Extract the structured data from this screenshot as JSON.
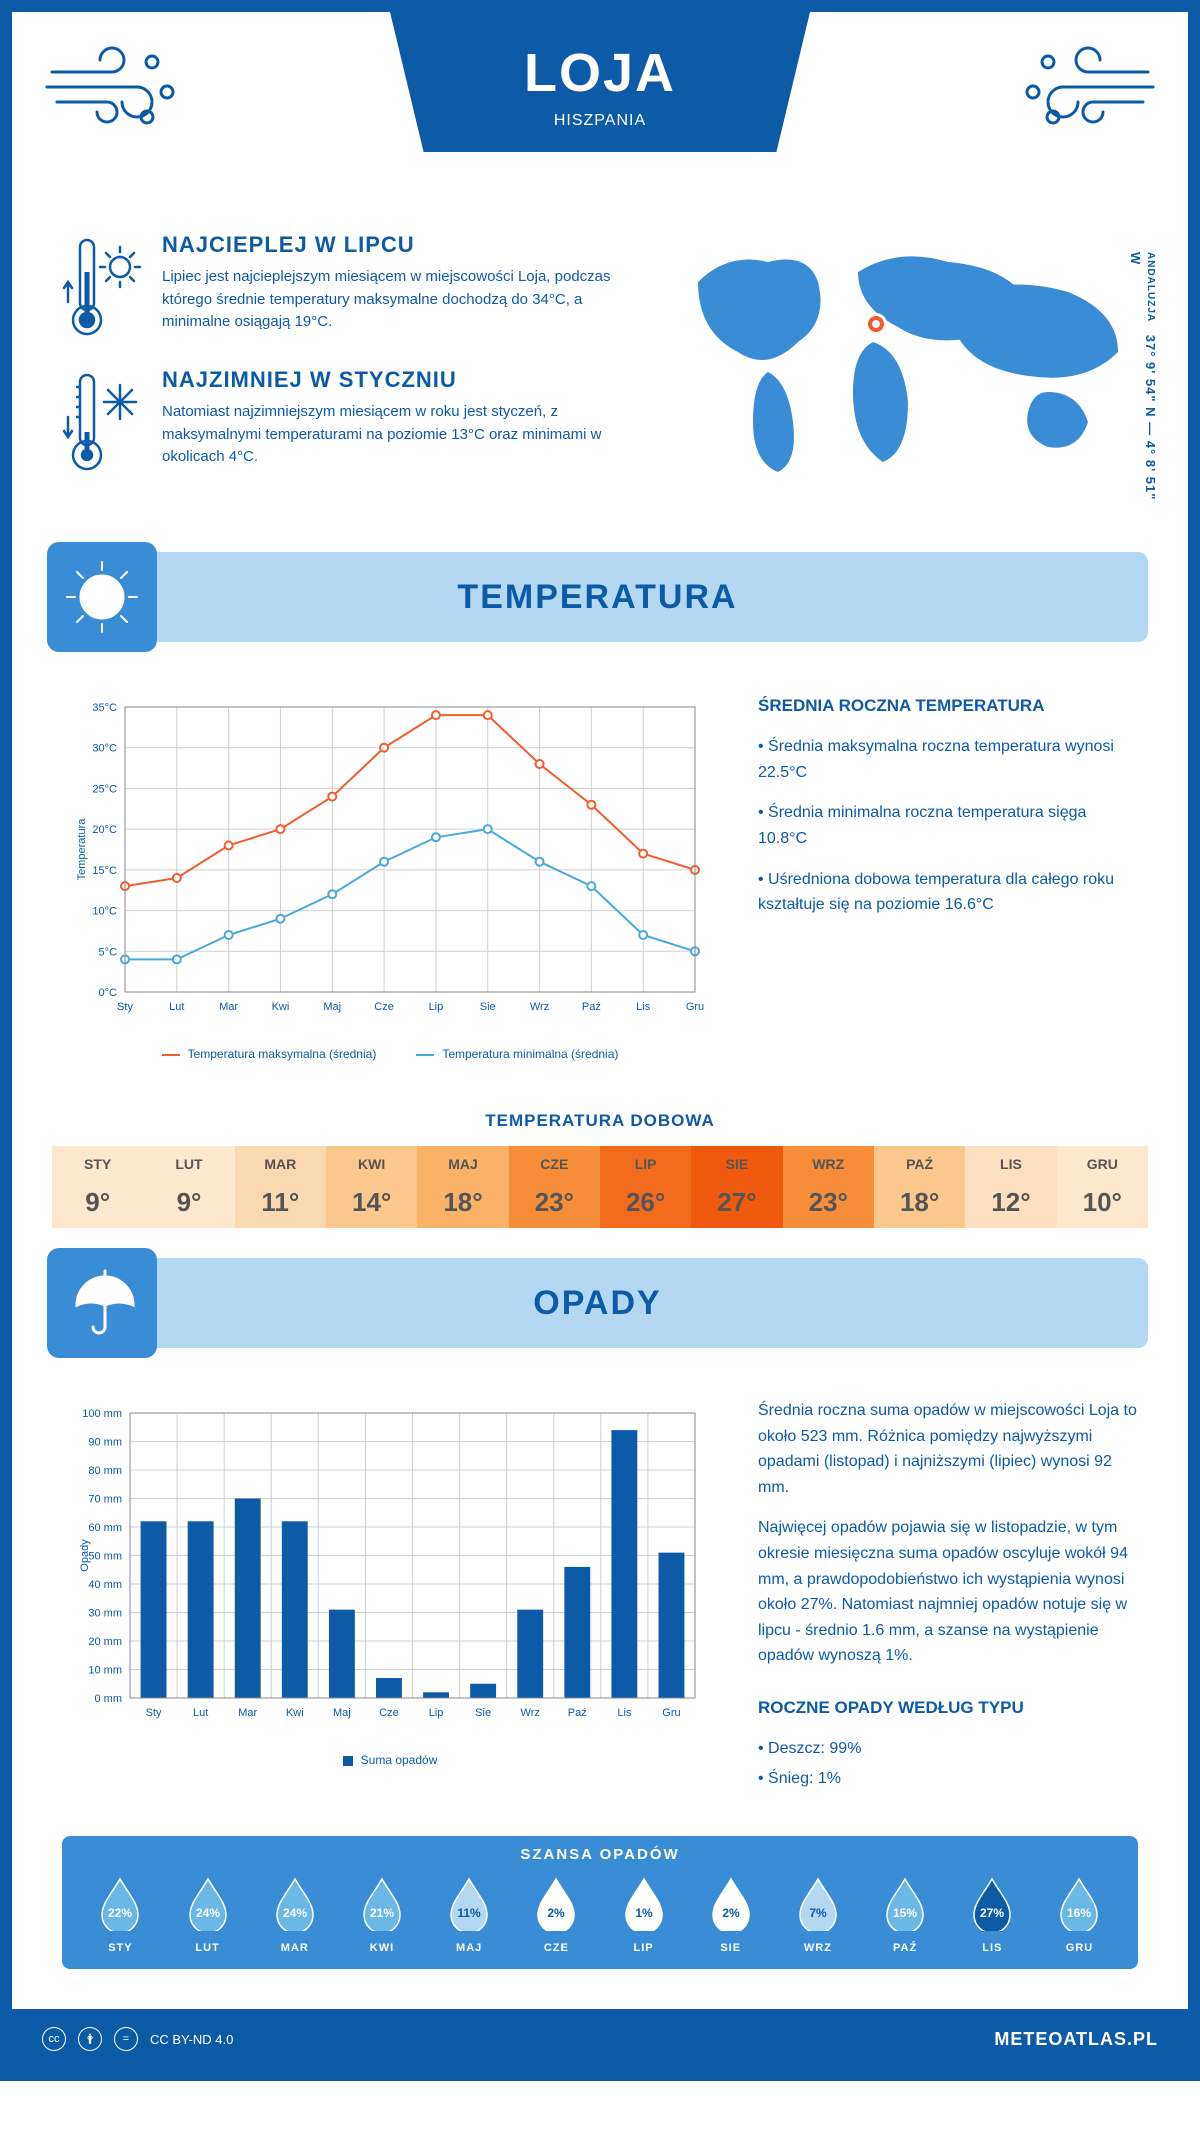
{
  "header": {
    "city": "LOJA",
    "country": "HISZPANIA"
  },
  "coords": {
    "region": "ANDALUZJA",
    "lat": "37° 9' 54\" N",
    "lon": "4° 8' 51\" W"
  },
  "facts": {
    "hot": {
      "title": "NAJCIEPLEJ W LIPCU",
      "body": "Lipiec jest najcieplejszym miesiącem w miejscowości Loja, podczas którego średnie temperatury maksymalne dochodzą do 34°C, a minimalne osiągają 19°C."
    },
    "cold": {
      "title": "NAJZIMNIEJ W STYCZNIU",
      "body": "Natomiast najzimniejszym miesiącem w roku jest styczeń, z maksymalnymi temperaturami na poziomie 13°C oraz minimami w okolicach 4°C."
    }
  },
  "sections": {
    "temp": "TEMPERATURA",
    "rain": "OPADY"
  },
  "temp_chart": {
    "months": [
      "Sty",
      "Lut",
      "Mar",
      "Kwi",
      "Maj",
      "Cze",
      "Lip",
      "Sie",
      "Wrz",
      "Paź",
      "Lis",
      "Gru"
    ],
    "max": [
      13,
      14,
      18,
      20,
      24,
      30,
      34,
      34,
      28,
      23,
      17,
      15
    ],
    "min": [
      4,
      4,
      7,
      9,
      12,
      16,
      19,
      20,
      16,
      13,
      7,
      5
    ],
    "ylabel": "Temperatura",
    "ymin": 0,
    "ymax": 35,
    "ystep": 5,
    "max_color": "#f25c2e",
    "min_color": "#4aa8e0",
    "grid_color": "#d0d0d0",
    "legend_max": "Temperatura maksymalna (średnia)",
    "legend_min": "Temperatura minimalna (średnia)"
  },
  "temp_side": {
    "title": "ŚREDNIA ROCZNA TEMPERATURA",
    "l1": "• Średnia maksymalna roczna temperatura wynosi 22.5°C",
    "l2": "• Średnia minimalna roczna temperatura sięga 10.8°C",
    "l3": "• Uśredniona dobowa temperatura dla całego roku kształtuje się na poziomie 16.6°C"
  },
  "daily_label": "TEMPERATURA DOBOWA",
  "daily": {
    "months": [
      "STY",
      "LUT",
      "MAR",
      "KWI",
      "MAJ",
      "CZE",
      "LIP",
      "SIE",
      "WRZ",
      "PAŹ",
      "LIS",
      "GRU"
    ],
    "values": [
      "9°",
      "9°",
      "11°",
      "14°",
      "18°",
      "23°",
      "26°",
      "27°",
      "23°",
      "18°",
      "12°",
      "10°"
    ],
    "colors": [
      "#fce7cf",
      "#fce7cf",
      "#fbd9b0",
      "#fbc78c",
      "#f9b268",
      "#f58d39",
      "#f26a1b",
      "#ef5a0f",
      "#f58d39",
      "#fbc78c",
      "#fce0c0",
      "#fce7cf"
    ]
  },
  "rain_chart": {
    "months": [
      "Sty",
      "Lut",
      "Mar",
      "Kwi",
      "Maj",
      "Cze",
      "Lip",
      "Sie",
      "Wrz",
      "Paź",
      "Lis",
      "Gru"
    ],
    "values": [
      62,
      62,
      70,
      62,
      31,
      7,
      2,
      5,
      31,
      46,
      94,
      51
    ],
    "ylabel": "Opady",
    "ymin": 0,
    "ymax": 100,
    "ystep": 10,
    "bar_color": "#0d5aa7",
    "grid_color": "#d0d0d0",
    "legend": "Suma opadów"
  },
  "rain_side": {
    "p1": "Średnia roczna suma opadów w miejscowości Loja to około 523 mm. Różnica pomiędzy najwyższymi opadami (listopad) i najniższymi (lipiec) wynosi 92 mm.",
    "p2": "Najwięcej opadów pojawia się w listopadzie, w tym okresie miesięczna suma opadów oscyluje wokół 94 mm, a prawdopodobieństwo ich wystąpienia wynosi około 27%. Natomiast najmniej opadów notuje się w lipcu - średnio 1.6 mm, a szanse na wystąpienie opadów wynoszą 1%.",
    "type_title": "ROCZNE OPADY WEDŁUG TYPU",
    "type1": "• Deszcz: 99%",
    "type2": "• Śnieg: 1%"
  },
  "rain_chance": {
    "title": "SZANSA OPADÓW",
    "months": [
      "STY",
      "LUT",
      "MAR",
      "KWI",
      "MAJ",
      "CZE",
      "LIP",
      "SIE",
      "WRZ",
      "PAŹ",
      "LIS",
      "GRU"
    ],
    "pct": [
      "22%",
      "24%",
      "24%",
      "21%",
      "11%",
      "2%",
      "1%",
      "2%",
      "7%",
      "15%",
      "27%",
      "16%"
    ],
    "fills": [
      "#6bb8e6",
      "#6bb8e6",
      "#6bb8e6",
      "#6bb8e6",
      "#b3d9f2",
      "#ffffff",
      "#ffffff",
      "#ffffff",
      "#b3d9f2",
      "#6bb8e6",
      "#0d5aa7",
      "#6bb8e6"
    ],
    "text_colors": [
      "#fff",
      "#fff",
      "#fff",
      "#fff",
      "#0d5aa7",
      "#0d5aa7",
      "#0d5aa7",
      "#0d5aa7",
      "#0d5aa7",
      "#fff",
      "#fff",
      "#fff"
    ]
  },
  "footer": {
    "license": "CC BY-ND 4.0",
    "site": "METEOATLAS.PL"
  }
}
